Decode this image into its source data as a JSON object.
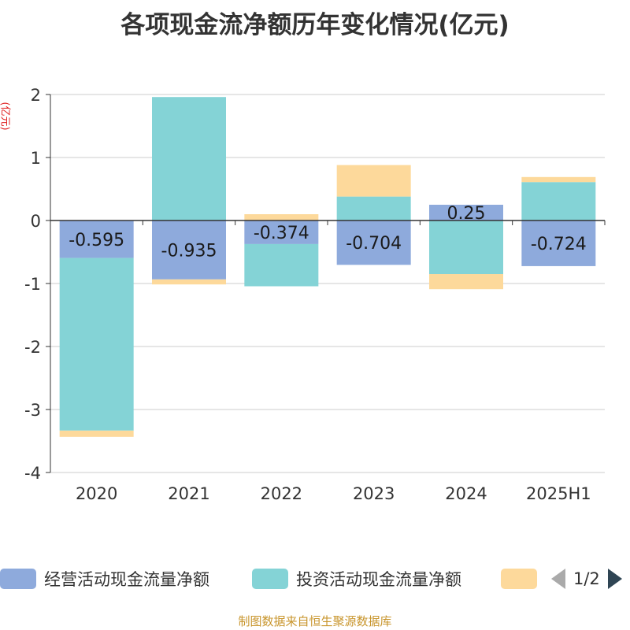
{
  "title": "各项现金流净额历年变化情况(亿元)",
  "unit_label": "(亿元)",
  "source": "制图数据来自恒生聚源数据库",
  "legend": {
    "items": [
      {
        "label": "经营活动现金流量净额",
        "color": "#8eaadc"
      },
      {
        "label": "投资活动现金流量净额",
        "color": "#84d3d6"
      },
      {
        "label": "",
        "color": "#fdd99b"
      }
    ],
    "page": "1/2"
  },
  "chart_data": {
    "type": "bar",
    "stacked": true,
    "categories": [
      "2020",
      "2021",
      "2022",
      "2023",
      "2024",
      "2025H1"
    ],
    "ylim": [
      -4,
      2
    ],
    "yticks": [
      2,
      1,
      0,
      -1,
      -2,
      -3,
      -4
    ],
    "grid": true,
    "legend_position": "bottom",
    "series": [
      {
        "name": "经营活动现金流量净额",
        "color": "#8eaadc",
        "values": [
          -0.595,
          -0.935,
          -0.374,
          -0.704,
          0.25,
          -0.724
        ],
        "labels": [
          "-0.595",
          "-0.935",
          "-0.374",
          "-0.704",
          "0.25",
          "-0.724"
        ]
      },
      {
        "name": "投资活动现金流量净额",
        "color": "#84d3d6",
        "values": [
          -2.74,
          1.96,
          -0.67,
          0.38,
          -0.85,
          0.61
        ]
      },
      {
        "color": "#fdd99b",
        "values": [
          -0.1,
          -0.08,
          0.1,
          0.5,
          -0.24,
          0.08
        ]
      }
    ]
  }
}
